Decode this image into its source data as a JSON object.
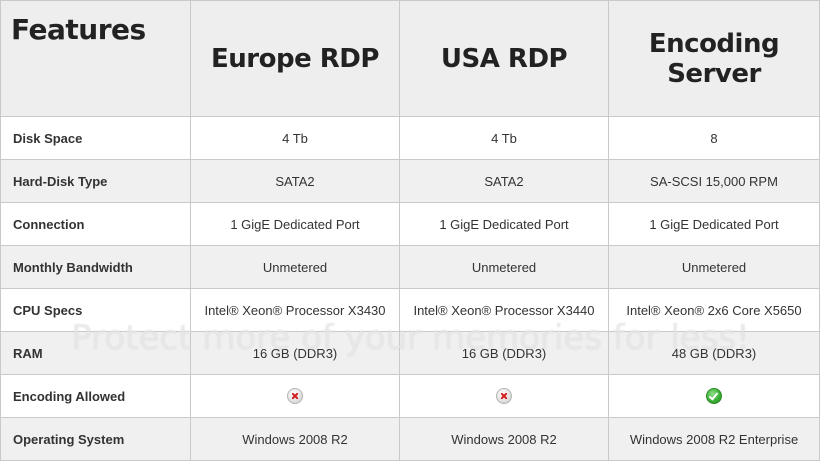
{
  "table": {
    "header": {
      "features": "Features",
      "col1": "Europe RDP",
      "col2": "USA RDP",
      "col3_line1": "Encoding",
      "col3_line2": "Server"
    },
    "rows": [
      {
        "label": "Disk Space",
        "c1": "4 Tb",
        "c2": "4 Tb",
        "c3": "8"
      },
      {
        "label": "Hard-Disk Type",
        "c1": "SATA2",
        "c2": "SATA2",
        "c3": "SA-SCSI 15,000 RPM"
      },
      {
        "label": "Connection",
        "c1": "1 GigE Dedicated Port",
        "c2": "1 GigE Dedicated Port",
        "c3": "1 GigE Dedicated Port"
      },
      {
        "label": "Monthly Bandwidth",
        "c1": "Unmetered",
        "c2": "Unmetered",
        "c3": "Unmetered"
      },
      {
        "label": "CPU Specs",
        "c1": "Intel® Xeon® Processor X3430",
        "c2": "Intel® Xeon® Processor X3440",
        "c3": "Intel® Xeon® 2x6 Core X5650"
      },
      {
        "label": "RAM",
        "c1": "16 GB (DDR3)",
        "c2": "16 GB (DDR3)",
        "c3": "48 GB (DDR3)"
      },
      {
        "label": "Encoding Allowed",
        "c1_icon": "cross-icon",
        "c2_icon": "cross-icon",
        "c3_icon": "check-icon"
      },
      {
        "label": "Operating System",
        "c1": "Windows 2008 R2",
        "c2": "Windows 2008 R2",
        "c3": "Windows 2008 R2 Enterprise"
      }
    ]
  },
  "watermark": "Protect more of your memories for less!"
}
